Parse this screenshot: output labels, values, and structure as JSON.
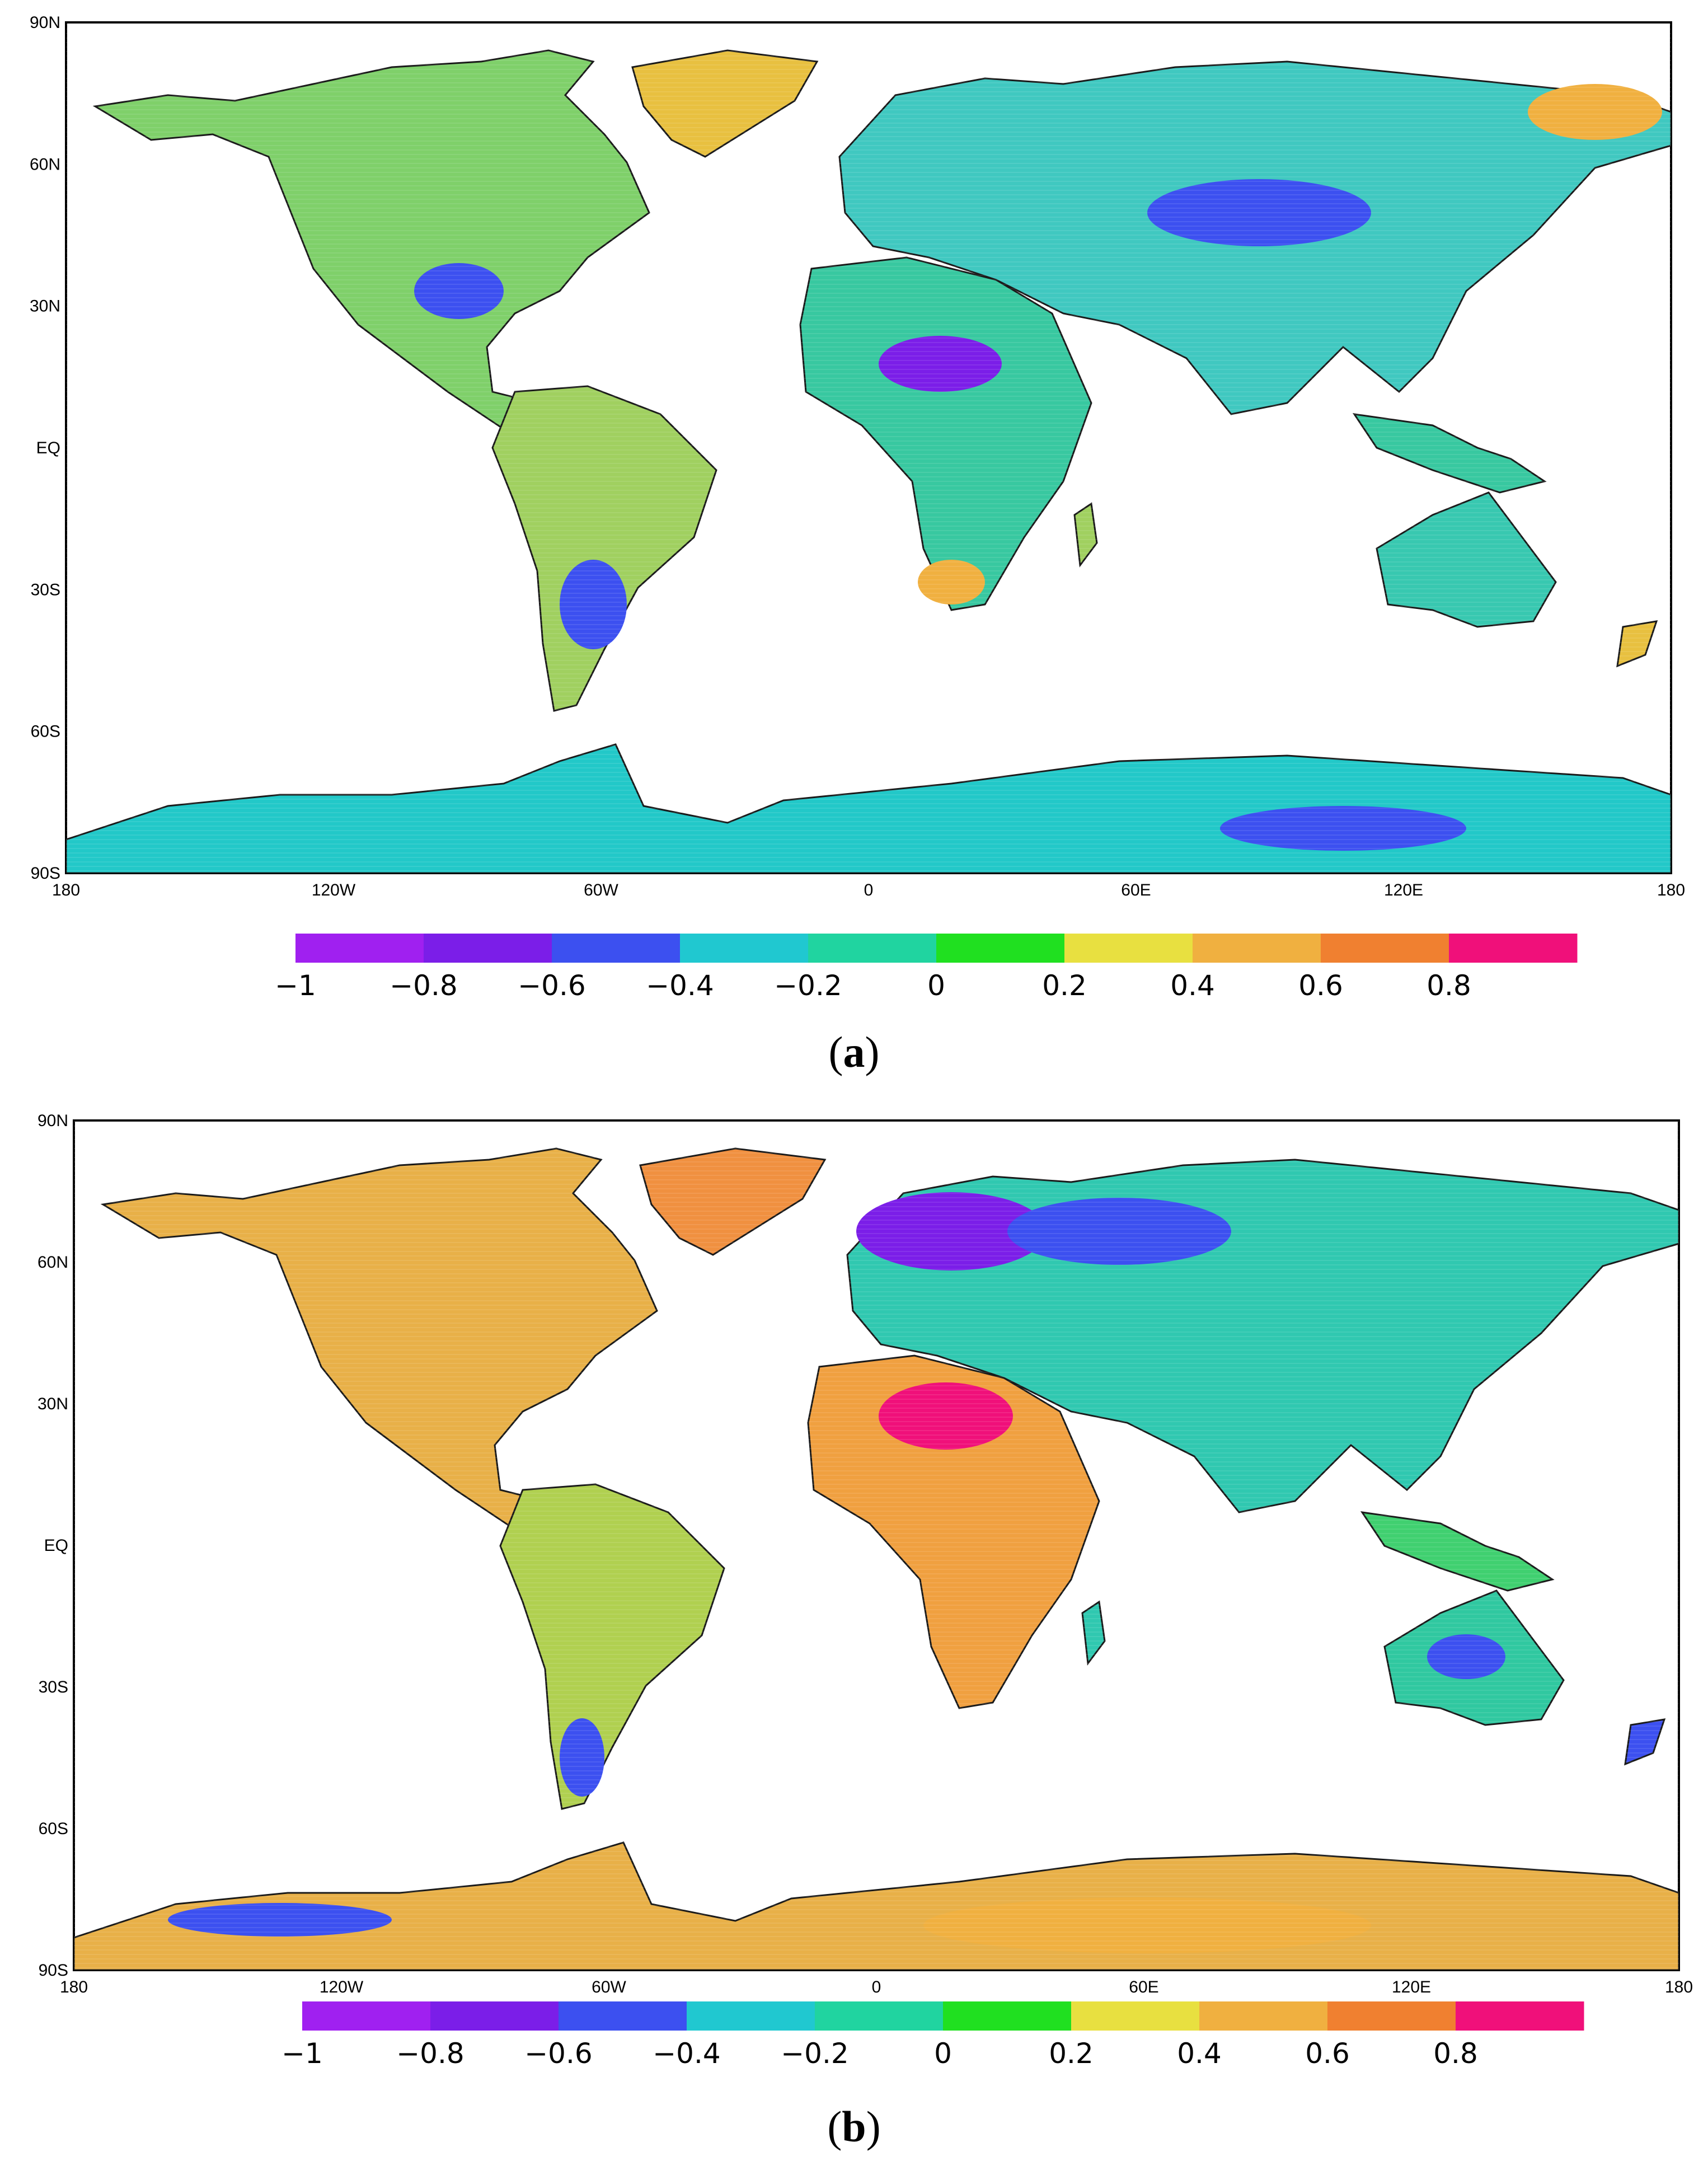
{
  "colorbar": {
    "colors": [
      "#a020f0",
      "#7b1ee8",
      "#3c50f0",
      "#20c8d0",
      "#20d4a0",
      "#20e020",
      "#e8e040",
      "#f0b040",
      "#f08030",
      "#f0107a"
    ],
    "labels": [
      "-1",
      "-0.8",
      "-0.6",
      "-0.4",
      "-0.2",
      "0",
      "0.2",
      "0.4",
      "0.6",
      "0.8"
    ]
  },
  "axes": {
    "lon_ticks": [
      "180",
      "120W",
      "60W",
      "0",
      "60E",
      "120E",
      "180"
    ],
    "lat_ticks": [
      "90N",
      "60N",
      "30N",
      "EQ",
      "30S",
      "60S",
      "90S"
    ]
  },
  "panels": [
    {
      "label": "a",
      "colors": {
        "land_base": "#22d49a",
        "ocean": "#ffffff",
        "coast": "#1a1a1a"
      }
    },
    {
      "label": "b",
      "colors": {
        "land_base": "#2fd68a",
        "ocean": "#ffffff",
        "coast": "#1a1a1a"
      }
    }
  ]
}
